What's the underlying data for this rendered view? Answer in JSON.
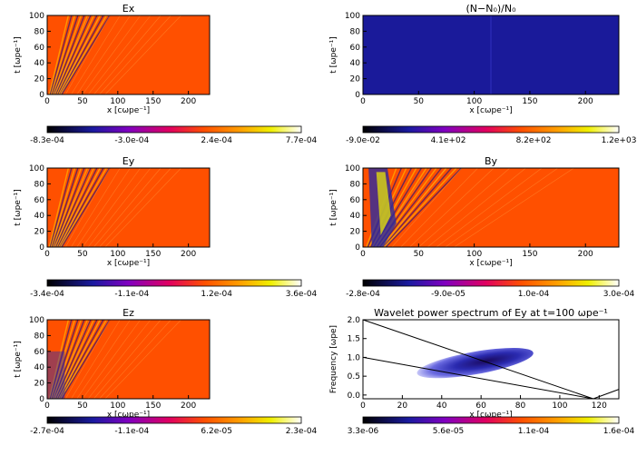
{
  "chart_data": [
    {
      "type": "heatmap",
      "title": "Ex",
      "xlabel": "x [cωpe⁻¹]",
      "ylabel": "t [ωpe⁻¹]",
      "xlim": [
        0,
        230
      ],
      "ylim": [
        0,
        100
      ],
      "xticks": [
        "0",
        "50",
        "100",
        "150",
        "200"
      ],
      "yticks": [
        "0",
        "20",
        "40",
        "60",
        "80",
        "100"
      ],
      "colorbar": {
        "min": -0.00083,
        "max": 0.00077,
        "labels": [
          "-8.3e-04",
          "-3.0e-04",
          "2.4e-04",
          "7.7e-04"
        ]
      },
      "background": "#ff5000"
    },
    {
      "type": "heatmap",
      "title": "(N−N₀)/N₀",
      "xlabel": "x [cωpe⁻¹]",
      "ylabel": "t [ωpe⁻¹]",
      "xlim": [
        0,
        230
      ],
      "ylim": [
        0,
        100
      ],
      "xticks": [
        "0",
        "50",
        "100",
        "150",
        "200"
      ],
      "yticks": [
        "0",
        "20",
        "40",
        "60",
        "80",
        "100"
      ],
      "colorbar": {
        "min": -0.09,
        "max": 1200,
        "labels": [
          "-9.0e-02",
          "4.1e+02",
          "8.2e+02",
          "1.2e+03"
        ]
      },
      "background": "#1a1a9a"
    },
    {
      "type": "heatmap",
      "title": "Ey",
      "xlabel": "x [cωpe⁻¹]",
      "ylabel": "t [ωpe⁻¹]",
      "xlim": [
        0,
        230
      ],
      "ylim": [
        0,
        100
      ],
      "xticks": [
        "0",
        "50",
        "100",
        "150",
        "200"
      ],
      "yticks": [
        "0",
        "20",
        "40",
        "60",
        "80",
        "100"
      ],
      "colorbar": {
        "min": -0.00034,
        "max": 0.00036,
        "labels": [
          "-3.4e-04",
          "-1.1e-04",
          "1.2e-04",
          "3.6e-04"
        ]
      },
      "background": "#ff5000"
    },
    {
      "type": "heatmap",
      "title": "By",
      "xlabel": "x [cωpe⁻¹]",
      "ylabel": "t [ωpe⁻¹]",
      "xlim": [
        0,
        230
      ],
      "ylim": [
        0,
        100
      ],
      "xticks": [
        "0",
        "50",
        "100",
        "150",
        "200"
      ],
      "yticks": [
        "0",
        "20",
        "40",
        "60",
        "80",
        "100"
      ],
      "colorbar": {
        "min": -0.00028,
        "max": 0.0003,
        "labels": [
          "-2.8e-04",
          "-9.0e-05",
          "1.0e-04",
          "3.0e-04"
        ]
      },
      "background": "#ff5000"
    },
    {
      "type": "heatmap",
      "title": "Ez",
      "xlabel": "x [cωpe⁻¹]",
      "ylabel": "t [ωpe⁻¹]",
      "xlim": [
        0,
        230
      ],
      "ylim": [
        0,
        100
      ],
      "xticks": [
        "0",
        "50",
        "100",
        "150",
        "200"
      ],
      "yticks": [
        "0",
        "20",
        "40",
        "60",
        "80",
        "100"
      ],
      "colorbar": {
        "min": -0.00027,
        "max": 0.00023,
        "labels": [
          "-2.7e-04",
          "-1.1e-04",
          "6.2e-05",
          "2.3e-04"
        ]
      },
      "background": "#ff5000"
    },
    {
      "type": "heatmap",
      "title": "Wavelet power spectrum of Ey at t=100 ωpe⁻¹",
      "xlabel": "x [cωpe⁻¹]",
      "ylabel": "Frequency [ωpe]",
      "xlim": [
        0,
        130
      ],
      "ylim": [
        -0.1,
        2.0
      ],
      "xticks": [
        "0",
        "20",
        "40",
        "60",
        "80",
        "100",
        "120"
      ],
      "yticks": [
        "0.0",
        "0.5",
        "1.0",
        "1.5",
        "2.0"
      ],
      "colorbar": {
        "min": 3.3e-06,
        "max": 0.00016,
        "labels": [
          "3.3e-06",
          "5.6e-05",
          "1.1e-04",
          "1.6e-04"
        ]
      },
      "background": "#ffffff",
      "lines": [
        {
          "x": [
            0,
            117
          ],
          "y": [
            2.0,
            -0.1
          ]
        },
        {
          "x": [
            0,
            117
          ],
          "y": [
            1.0,
            -0.1
          ]
        },
        {
          "x": [
            117,
            130
          ],
          "y": [
            -0.1,
            0.15
          ]
        }
      ]
    }
  ]
}
